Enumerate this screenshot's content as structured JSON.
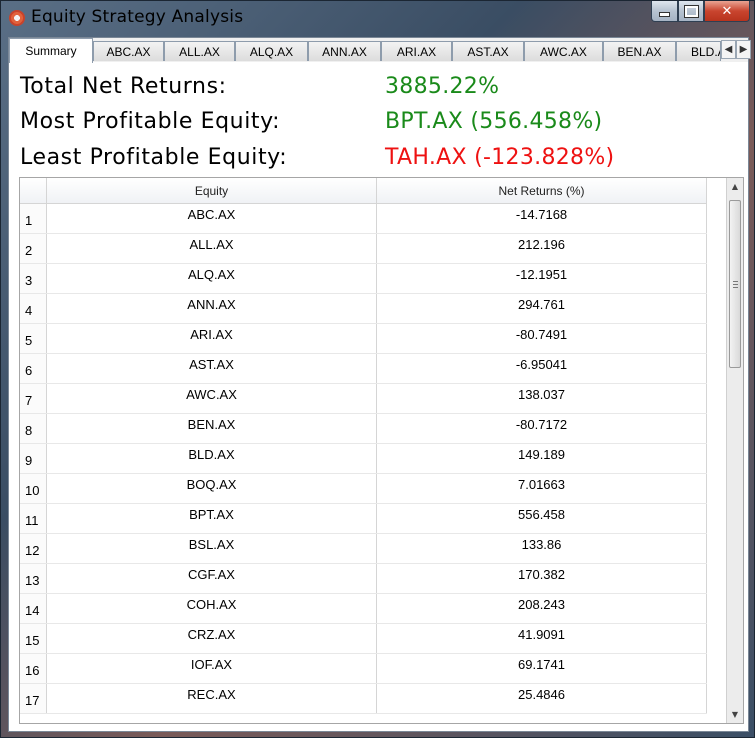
{
  "window": {
    "title": "Equity Strategy Analysis"
  },
  "tabs": [
    "Summary",
    "ABC.AX",
    "ALL.AX",
    "ALQ.AX",
    "ANN.AX",
    "ARI.AX",
    "AST.AX",
    "AWC.AX",
    "BEN.AX",
    "BLD.AX"
  ],
  "summary": {
    "total_label": "Total Net Returns:",
    "total_value": "3885.22%",
    "most_label": "Most Profitable Equity:",
    "most_value": "BPT.AX (556.458%)",
    "least_label": "Least Profitable Equity:",
    "least_value": "TAH.AX (-123.828%)"
  },
  "colors": {
    "positive": "#1a8a1a",
    "negative": "#ee1111"
  },
  "table": {
    "headers": [
      "Equity",
      "Net Returns (%)"
    ],
    "rows": [
      [
        "1",
        "ABC.AX",
        "-14.7168"
      ],
      [
        "2",
        "ALL.AX",
        "212.196"
      ],
      [
        "3",
        "ALQ.AX",
        "-12.1951"
      ],
      [
        "4",
        "ANN.AX",
        "294.761"
      ],
      [
        "5",
        "ARI.AX",
        "-80.7491"
      ],
      [
        "6",
        "AST.AX",
        "-6.95041"
      ],
      [
        "7",
        "AWC.AX",
        "138.037"
      ],
      [
        "8",
        "BEN.AX",
        "-80.7172"
      ],
      [
        "9",
        "BLD.AX",
        "149.189"
      ],
      [
        "10",
        "BOQ.AX",
        "7.01663"
      ],
      [
        "11",
        "BPT.AX",
        "556.458"
      ],
      [
        "12",
        "BSL.AX",
        "133.86"
      ],
      [
        "13",
        "CGF.AX",
        "170.382"
      ],
      [
        "14",
        "COH.AX",
        "208.243"
      ],
      [
        "15",
        "CRZ.AX",
        "41.9091"
      ],
      [
        "16",
        "IOF.AX",
        "69.1741"
      ],
      [
        "17",
        "REC.AX",
        "25.4846"
      ]
    ]
  }
}
